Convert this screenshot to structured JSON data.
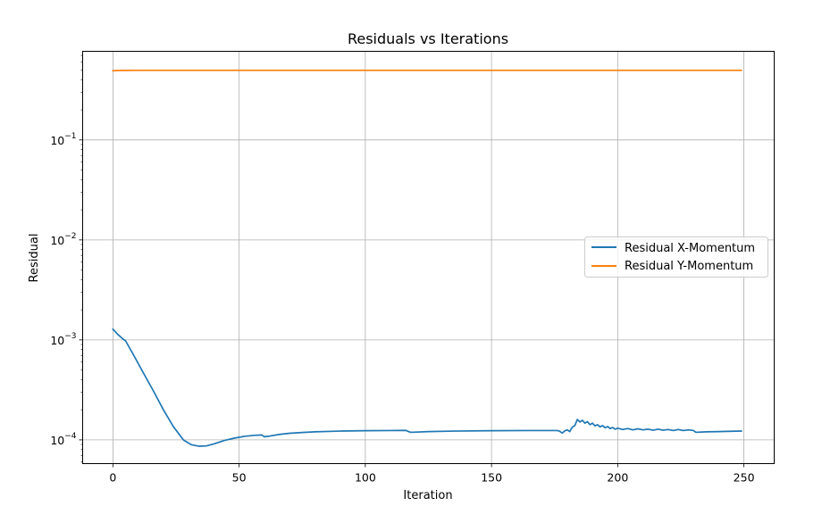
{
  "chart_data": {
    "type": "line",
    "title": "Residuals vs Iterations",
    "xlabel": "Iteration",
    "ylabel": "Residual",
    "xlim": [
      -12,
      262
    ],
    "ylim": [
      5.79e-05,
      0.77
    ],
    "yscale": "log",
    "grid": true,
    "legend_position": "center-right",
    "x_ticks": [
      {
        "value": 0,
        "label": "0"
      },
      {
        "value": 50,
        "label": "50"
      },
      {
        "value": 100,
        "label": "100"
      },
      {
        "value": 150,
        "label": "150"
      },
      {
        "value": 200,
        "label": "200"
      },
      {
        "value": 250,
        "label": "250"
      }
    ],
    "y_ticks": [
      {
        "value": 0.0001,
        "base": "10",
        "exp": "−4"
      },
      {
        "value": 0.001,
        "base": "10",
        "exp": "−3"
      },
      {
        "value": 0.01,
        "base": "10",
        "exp": "−2"
      },
      {
        "value": 0.1,
        "base": "10",
        "exp": "−1"
      }
    ],
    "series": [
      {
        "name": "Residual X-Momentum",
        "color": "#1f77b4",
        "x": [
          0,
          2,
          4,
          5,
          8,
          12,
          16,
          20,
          24,
          28,
          31,
          34,
          37,
          40,
          44,
          48,
          52,
          56,
          59,
          60,
          62,
          66,
          70,
          75,
          80,
          90,
          100,
          110,
          116,
          117,
          118,
          125,
          135,
          150,
          165,
          176,
          177,
          178,
          179,
          180,
          181,
          182,
          183,
          184,
          185,
          186,
          187,
          188,
          189,
          190,
          191,
          192,
          193,
          194,
          195,
          196,
          197,
          198,
          199,
          200,
          202,
          204,
          206,
          208,
          210,
          212,
          214,
          216,
          218,
          220,
          222,
          224,
          226,
          228,
          230,
          231,
          235,
          240,
          245,
          249
        ],
        "y": [
          0.00128,
          0.00113,
          0.00102,
          0.00098,
          0.00072,
          0.00047,
          0.00031,
          0.0002,
          0.000135,
          9.95e-05,
          8.95e-05,
          8.65e-05,
          8.7e-05,
          9.12e-05,
          9.85e-05,
          0.000104,
          0.0001085,
          0.000111,
          0.000112,
          0.0001075,
          0.000109,
          0.0001135,
          0.0001165,
          0.0001185,
          0.0001205,
          0.0001225,
          0.0001235,
          0.000124,
          0.0001245,
          0.0001215,
          0.000119,
          0.000121,
          0.0001225,
          0.0001235,
          0.000124,
          0.000124,
          0.000122,
          0.000117,
          0.000123,
          0.000126,
          0.000121,
          0.000134,
          0.000139,
          0.00016,
          0.000151,
          0.000157,
          0.000147,
          0.000152,
          0.000142,
          0.000147,
          0.000138,
          0.000142,
          0.000135,
          0.000139,
          0.000132,
          0.000136,
          0.00013,
          0.000133,
          0.000128,
          0.000131,
          0.000127,
          0.00013,
          0.000126,
          0.000129,
          0.000126,
          0.000128,
          0.000125,
          0.000128,
          0.000125,
          0.000127,
          0.000124,
          0.000127,
          0.000124,
          0.000126,
          0.000124,
          0.000119,
          0.0001205,
          0.000121,
          0.000122,
          0.0001225
        ]
      },
      {
        "name": "Residual Y-Momentum",
        "color": "#ff7f0e",
        "x": [
          0,
          1,
          2,
          5,
          10,
          50,
          100,
          150,
          200,
          249
        ],
        "y": [
          0.492,
          0.494,
          0.495,
          0.496,
          0.497,
          0.497,
          0.497,
          0.497,
          0.497,
          0.497
        ]
      }
    ]
  }
}
